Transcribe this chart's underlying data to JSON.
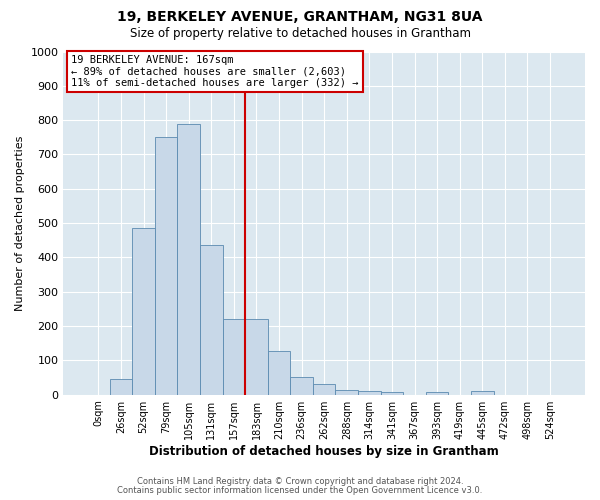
{
  "title": "19, BERKELEY AVENUE, GRANTHAM, NG31 8UA",
  "subtitle": "Size of property relative to detached houses in Grantham",
  "xlabel": "Distribution of detached houses by size in Grantham",
  "ylabel": "Number of detached properties",
  "bar_labels": [
    "0sqm",
    "26sqm",
    "52sqm",
    "79sqm",
    "105sqm",
    "131sqm",
    "157sqm",
    "183sqm",
    "210sqm",
    "236sqm",
    "262sqm",
    "288sqm",
    "314sqm",
    "341sqm",
    "367sqm",
    "393sqm",
    "419sqm",
    "445sqm",
    "472sqm",
    "498sqm",
    "524sqm"
  ],
  "bar_values": [
    0,
    45,
    485,
    750,
    790,
    435,
    220,
    220,
    127,
    53,
    30,
    14,
    10,
    8,
    0,
    7,
    0,
    10,
    0,
    0,
    0
  ],
  "bar_color": "#c8d8e8",
  "bar_edge_color": "#5a8ab0",
  "vline_x": 6.5,
  "vline_color": "#cc0000",
  "annotation_title": "19 BERKELEY AVENUE: 167sqm",
  "annotation_line1": "← 89% of detached houses are smaller (2,603)",
  "annotation_line2": "11% of semi-detached houses are larger (332) →",
  "annotation_box_color": "#ffffff",
  "annotation_box_edge": "#cc0000",
  "ylim": [
    0,
    1000
  ],
  "plot_bg_color": "#dce8f0",
  "fig_bg_color": "#ffffff",
  "grid_color": "#ffffff",
  "footer1": "Contains HM Land Registry data © Crown copyright and database right 2024.",
  "footer2": "Contains public sector information licensed under the Open Government Licence v3.0."
}
